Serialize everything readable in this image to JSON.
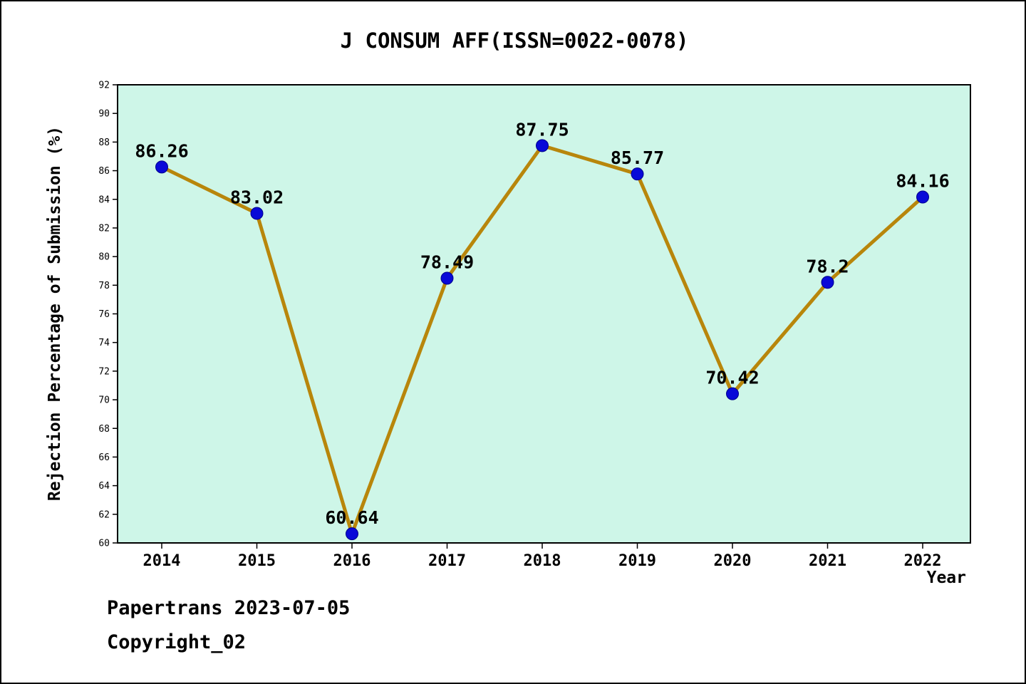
{
  "title": "J CONSUM AFF(ISSN=0022-0078)",
  "footer": {
    "line1": "Papertrans 2023-07-05",
    "line2": "Copyright_02"
  },
  "chart_data": {
    "type": "line",
    "title": "J CONSUM AFF(ISSN=0022-0078)",
    "xlabel": "Year",
    "ylabel": "Rejection Percentage of Submission (%)",
    "categories": [
      "2014",
      "2015",
      "2016",
      "2017",
      "2018",
      "2019",
      "2020",
      "2021",
      "2022"
    ],
    "values": [
      86.26,
      83.02,
      60.64,
      78.49,
      87.75,
      85.77,
      70.42,
      78.2,
      84.16
    ],
    "point_labels": [
      "86.26",
      "83.02",
      "60.64",
      "78.49",
      "87.75",
      "85.77",
      "70.42",
      "78.2",
      "84.16"
    ],
    "ylim": [
      60,
      92
    ],
    "ytick_step": 2,
    "grid": false,
    "legend": "none",
    "line_color": "#B8860B",
    "marker_color": "#0909D8",
    "marker_edge_color": "#00008B",
    "plot_bg": "#CEF6E8",
    "axis_color": "#000000"
  }
}
